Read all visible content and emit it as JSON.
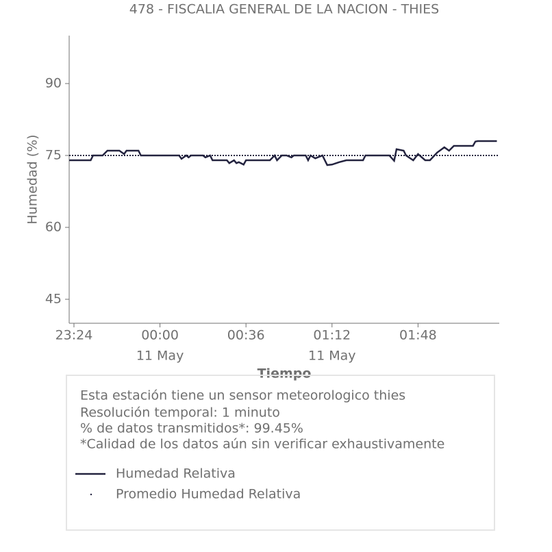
{
  "chart_data": {
    "type": "line",
    "title": "478 - FISCALIA GENERAL DE LA NACION - THIES",
    "ylabel": "Humedad (%)",
    "xlabel": "Tiempo",
    "x": [
      "23:22",
      "23:31",
      "23:32",
      "23:36",
      "23:38",
      "23:43",
      "23:45",
      "23:46",
      "23:51",
      "23:52",
      "00:08",
      "00:09",
      "00:11",
      "00:12",
      "00:13",
      "00:18",
      "00:19",
      "00:21",
      "00:22",
      "00:28",
      "00:29",
      "00:31",
      "00:32",
      "00:33",
      "00:35",
      "00:36",
      "00:46",
      "00:48",
      "00:49",
      "00:51",
      "00:53",
      "00:55",
      "00:56",
      "01:01",
      "01:02",
      "01:03",
      "01:05",
      "01:08",
      "01:10",
      "01:12",
      "01:15",
      "01:18",
      "01:25",
      "01:26",
      "01:36",
      "01:38",
      "01:39",
      "01:42",
      "01:43",
      "01:46",
      "01:48",
      "01:51",
      "01:53",
      "01:56",
      "01:59",
      "02:01",
      "02:03",
      "02:11",
      "02:12",
      "02:13",
      "02:21"
    ],
    "series": [
      {
        "name": "Humedad Relativa",
        "color": "#23233f",
        "values": [
          74,
          74,
          75,
          75,
          76,
          76,
          75.3,
          76,
          76,
          75,
          75,
          74.3,
          75,
          74.6,
          75,
          75,
          74.6,
          75,
          74,
          74,
          73.4,
          74,
          73.4,
          73.6,
          73.1,
          74,
          74,
          75,
          74,
          75,
          75,
          74.6,
          75,
          75,
          74,
          75,
          74.4,
          75,
          73,
          73.1,
          73.6,
          74,
          74,
          75,
          75,
          73.9,
          76.3,
          76,
          75,
          74,
          75.3,
          74,
          74,
          75.6,
          76.7,
          76,
          77,
          77,
          77.9,
          78,
          78
        ]
      },
      {
        "name": "Promedio Humedad Relativa",
        "color": "#23233f",
        "value": 75
      }
    ],
    "xlim": [
      "23:22",
      "02:22"
    ],
    "xticks": [
      "23:24",
      "00:00",
      "00:36",
      "01:12",
      "01:48"
    ],
    "xtick_sublabels": [
      null,
      "11 May",
      null,
      "11 May",
      null
    ],
    "ylim": [
      40,
      100
    ],
    "yticks": [
      45,
      60,
      75,
      90
    ],
    "info_lines": [
      "Esta estación tiene un sensor meteorologico thies",
      "Resolución temporal: 1 minuto",
      "% de datos transmitidos*: 99.45%",
      "*Calidad de los datos aún sin verificar exhaustivamente"
    ]
  }
}
